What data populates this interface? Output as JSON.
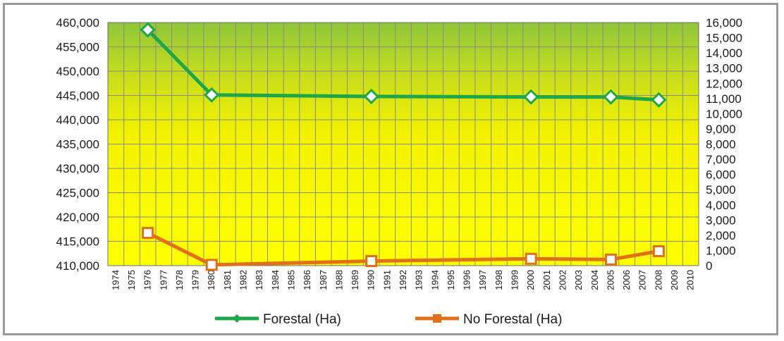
{
  "chart_data": {
    "type": "line",
    "x": [
      "1974",
      "1975",
      "1976",
      "1977",
      "1978",
      "1979",
      "1980",
      "1981",
      "1982",
      "1983",
      "1984",
      "1985",
      "1986",
      "1987",
      "1988",
      "1989",
      "1990",
      "1991",
      "1992",
      "1993",
      "1994",
      "1995",
      "1996",
      "1997",
      "1998",
      "1999",
      "2000",
      "2001",
      "2002",
      "2003",
      "2004",
      "2005",
      "2006",
      "2007",
      "2008",
      "2009",
      "2010"
    ],
    "x_tick_labels": [
      "1974",
      "1975",
      "1976",
      "1977",
      "1978",
      "1979",
      "1980",
      "1981",
      "1982",
      "1983",
      "1984",
      "1985",
      "1986",
      "1987",
      "1988",
      "1989",
      "1990",
      "1991",
      "1992",
      "1993",
      "1994",
      "1995",
      "1996",
      "1997",
      "1998",
      "1999",
      "2000",
      "2001",
      "2002",
      "2003",
      "2004",
      "2005",
      "2006",
      "2007",
      "2008",
      "2009",
      "2010"
    ],
    "y_left_ticks": [
      "410,000",
      "415,000",
      "420,000",
      "425,000",
      "430,000",
      "435,000",
      "440,000",
      "445,000",
      "450,000",
      "455,000",
      "460,000"
    ],
    "y_right_ticks": [
      "0",
      "1,000",
      "2,000",
      "3,000",
      "4,000",
      "5,000",
      "6,000",
      "7,000",
      "8,000",
      "9,000",
      "10,000",
      "11,000",
      "12,000",
      "13,000",
      "14,000",
      "15,000",
      "16,000"
    ],
    "ylim_left": [
      410000,
      460000
    ],
    "ylim_right": [
      0,
      16000
    ],
    "grid": true,
    "legend_position": "bottom",
    "series": [
      {
        "name": "Forestal (Ha)",
        "axis": "left",
        "color": "#1fa64a",
        "marker": "diamond",
        "x": [
          "1976",
          "1980",
          "1990",
          "2000",
          "2005",
          "2008"
        ],
        "values": [
          458500,
          445100,
          444800,
          444700,
          444700,
          444100
        ]
      },
      {
        "name": "No Forestal (Ha)",
        "axis": "right",
        "color": "#e0701c",
        "marker": "square",
        "x": [
          "1976",
          "1980",
          "1990",
          "2000",
          "2005",
          "2008"
        ],
        "values": [
          2150,
          50,
          300,
          450,
          400,
          950
        ]
      }
    ]
  }
}
